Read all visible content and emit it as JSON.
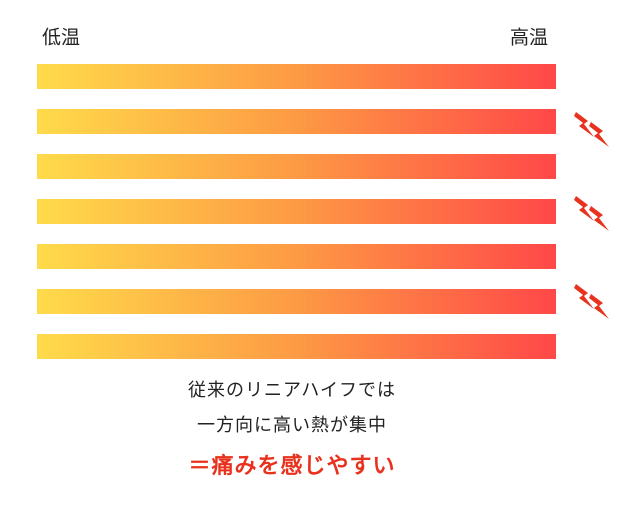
{
  "header": {
    "low": "低温",
    "high": "高温"
  },
  "caption": {
    "lines": [
      "従来のリニアハイフでは",
      "一方向に高い熱が集中"
    ],
    "emphasis": "＝痛みを感じやすい"
  }
}
